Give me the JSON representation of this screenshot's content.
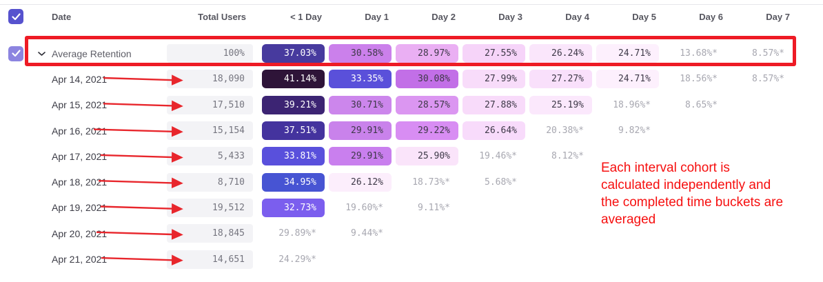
{
  "table": {
    "columns": [
      "Date",
      "Total Users",
      "< 1 Day",
      "Day 1",
      "Day 2",
      "Day 3",
      "Day 4",
      "Day 5",
      "Day 6",
      "Day 7"
    ],
    "select_all_checked": true,
    "average_row": {
      "label": "Average Retention",
      "checked": true,
      "total_users": "100%",
      "cells": [
        {
          "text": "37.03%",
          "bg": "#473a9e",
          "fg": "white"
        },
        {
          "text": "30.58%",
          "bg": "#cb80eb",
          "fg": "dark"
        },
        {
          "text": "28.97%",
          "bg": "#eaaff3",
          "fg": "dark"
        },
        {
          "text": "27.55%",
          "bg": "#f6d4f9",
          "fg": "dark"
        },
        {
          "text": "26.24%",
          "bg": "#fae6fb",
          "fg": "dark"
        },
        {
          "text": "24.71%",
          "bg": "#fdf0fd",
          "fg": "dark"
        },
        {
          "text": "13.68%*",
          "bg": null,
          "fg": "muted"
        },
        {
          "text": "8.57%*",
          "bg": null,
          "fg": "muted"
        }
      ]
    },
    "rows": [
      {
        "date": "Apr 14, 2021",
        "total_users": "18,090",
        "cells": [
          {
            "text": "41.14%",
            "bg": "#2e1438",
            "fg": "white"
          },
          {
            "text": "33.35%",
            "bg": "#5a50da",
            "fg": "white"
          },
          {
            "text": "30.08%",
            "bg": "#c26fe7",
            "fg": "dark"
          },
          {
            "text": "27.99%",
            "bg": "#f8dcfa",
            "fg": "dark"
          },
          {
            "text": "27.27%",
            "bg": "#f9e0fb",
            "fg": "dark"
          },
          {
            "text": "24.71%",
            "bg": "#fdf0fd",
            "fg": "dark"
          },
          {
            "text": "18.56%*",
            "bg": null,
            "fg": "muted"
          },
          {
            "text": "8.57%*",
            "bg": null,
            "fg": "muted"
          }
        ]
      },
      {
        "date": "Apr 15, 2021",
        "total_users": "17,510",
        "cells": [
          {
            "text": "39.21%",
            "bg": "#3c2473",
            "fg": "white"
          },
          {
            "text": "30.71%",
            "bg": "#cc86ec",
            "fg": "dark"
          },
          {
            "text": "28.57%",
            "bg": "#db96f1",
            "fg": "dark"
          },
          {
            "text": "27.88%",
            "bg": "#f8dbfa",
            "fg": "dark"
          },
          {
            "text": "25.19%",
            "bg": "#fbe8fc",
            "fg": "dark"
          },
          {
            "text": "18.96%*",
            "bg": null,
            "fg": "muted"
          },
          {
            "text": "8.65%*",
            "bg": null,
            "fg": "muted"
          },
          null
        ]
      },
      {
        "date": "Apr 16, 2021",
        "total_users": "15,154",
        "cells": [
          {
            "text": "37.51%",
            "bg": "#44339e",
            "fg": "white"
          },
          {
            "text": "29.91%",
            "bg": "#c982eb",
            "fg": "dark"
          },
          {
            "text": "29.22%",
            "bg": "#d88df3",
            "fg": "dark"
          },
          {
            "text": "26.64%",
            "bg": "#f8dbfb",
            "fg": "dark"
          },
          {
            "text": "20.38%*",
            "bg": null,
            "fg": "muted"
          },
          {
            "text": "9.82%*",
            "bg": null,
            "fg": "muted"
          },
          null,
          null
        ]
      },
      {
        "date": "Apr 17, 2021",
        "total_users": "5,433",
        "cells": [
          {
            "text": "33.81%",
            "bg": "#5950dc",
            "fg": "white"
          },
          {
            "text": "29.91%",
            "bg": "#c97fee",
            "fg": "dark"
          },
          {
            "text": "25.90%",
            "bg": "#fae4fa",
            "fg": "dark"
          },
          {
            "text": "19.46%*",
            "bg": null,
            "fg": "muted"
          },
          {
            "text": "8.12%*",
            "bg": null,
            "fg": "muted"
          },
          null,
          null,
          null
        ]
      },
      {
        "date": "Apr 18, 2021",
        "total_users": "8,710",
        "cells": [
          {
            "text": "34.95%",
            "bg": "#4754d3",
            "fg": "white"
          },
          {
            "text": "26.12%",
            "bg": "#fceefc",
            "fg": "dark"
          },
          {
            "text": "18.73%*",
            "bg": null,
            "fg": "muted"
          },
          {
            "text": "5.68%*",
            "bg": null,
            "fg": "muted"
          },
          null,
          null,
          null,
          null
        ]
      },
      {
        "date": "Apr 19, 2021",
        "total_users": "19,512",
        "cells": [
          {
            "text": "32.73%",
            "bg": "#7b5eee",
            "fg": "white"
          },
          {
            "text": "19.60%*",
            "bg": null,
            "fg": "muted"
          },
          {
            "text": "9.11%*",
            "bg": null,
            "fg": "muted"
          },
          null,
          null,
          null,
          null,
          null
        ]
      },
      {
        "date": "Apr 20, 2021",
        "total_users": "18,845",
        "cells": [
          {
            "text": "29.89%*",
            "bg": null,
            "fg": "muted"
          },
          {
            "text": "9.44%*",
            "bg": null,
            "fg": "muted"
          },
          null,
          null,
          null,
          null,
          null,
          null
        ]
      },
      {
        "date": "Apr 21, 2021",
        "total_users": "14,651",
        "cells": [
          {
            "text": "24.29%*",
            "bg": null,
            "fg": "muted"
          },
          null,
          null,
          null,
          null,
          null,
          null,
          null
        ]
      }
    ]
  },
  "annotations": {
    "note": "Each interval cohort is\ncalculated independently and\nthe completed time buckets are\naveraged",
    "note_color": "#f60f0f",
    "highlight_box_color": "#ee1b25",
    "arrow_color": "#e8262c"
  },
  "colors": {
    "checkbox": "#5652ce",
    "checkbox_row": "#8c84e0",
    "total_users_bg": "#f3f3f6",
    "muted_text": "#a7a7b0",
    "header_text": "#56565f"
  }
}
